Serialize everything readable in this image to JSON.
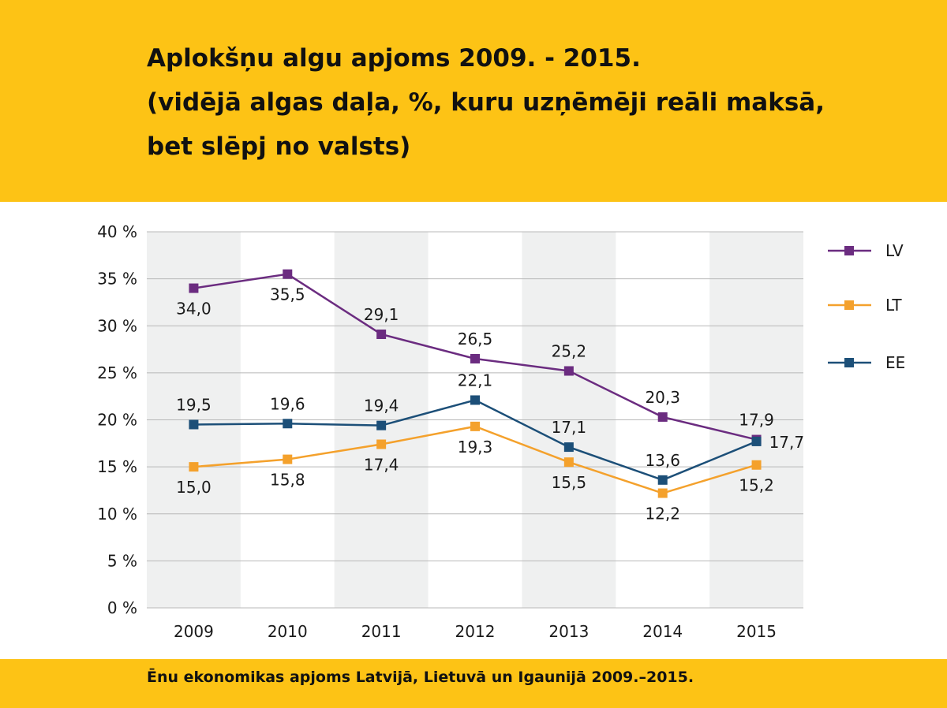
{
  "header": {
    "title_lines": [
      "Aplokšņu algu apjoms 2009. - 2015.",
      "(vidējā algas daļa, %, kuru uzņēmēji reāli maksā,",
      "bet slēpj no valsts)"
    ]
  },
  "footer": {
    "caption": "Ēnu ekonomikas apjoms  Latvijā, Lietuvā un Igaunijā  2009.–2015."
  },
  "colors": {
    "band": "#FDC315",
    "stripe": "#EFF0F0",
    "grid": "#B8B8B8"
  },
  "chart_data": {
    "type": "line",
    "x": [
      "2009",
      "2010",
      "2011",
      "2012",
      "2013",
      "2014",
      "2015"
    ],
    "ylim": [
      0,
      40
    ],
    "y_ticks": [
      0,
      5,
      10,
      15,
      20,
      25,
      30,
      35,
      40
    ],
    "y_tick_labels": [
      "0 %",
      "5 %",
      "10 %",
      "15 %",
      "20 %",
      "25 %",
      "30 %",
      "35 %",
      "40 %"
    ],
    "grid": true,
    "legend_position": "right",
    "series": [
      {
        "name": "LV",
        "color": "#6B2C80",
        "values": [
          34.0,
          35.5,
          29.1,
          26.5,
          25.2,
          20.3,
          17.9
        ],
        "labels": [
          "34,0",
          "35,5",
          "29,1",
          "26,5",
          "25,2",
          "20,3",
          "17,9"
        ],
        "label_pos": [
          "below",
          "below",
          "above",
          "above",
          "above",
          "above",
          "above"
        ]
      },
      {
        "name": "LT",
        "color": "#F4A12C",
        "values": [
          15.0,
          15.8,
          17.4,
          19.3,
          15.5,
          12.2,
          15.2
        ],
        "labels": [
          "15,0",
          "15,8",
          "17,4",
          "19,3",
          "15,5",
          "12,2",
          "15,2"
        ],
        "label_pos": [
          "below",
          "below",
          "below",
          "below",
          "below",
          "below",
          "below"
        ]
      },
      {
        "name": "EE",
        "color": "#1C4F78",
        "values": [
          19.5,
          19.6,
          19.4,
          22.1,
          17.1,
          13.6,
          17.7
        ],
        "labels": [
          "19,5",
          "19,6",
          "19,4",
          "22,1",
          "17,1",
          "13,6",
          "17,7"
        ],
        "label_pos": [
          "above",
          "above",
          "above",
          "above",
          "above",
          "above",
          "right"
        ]
      }
    ]
  }
}
